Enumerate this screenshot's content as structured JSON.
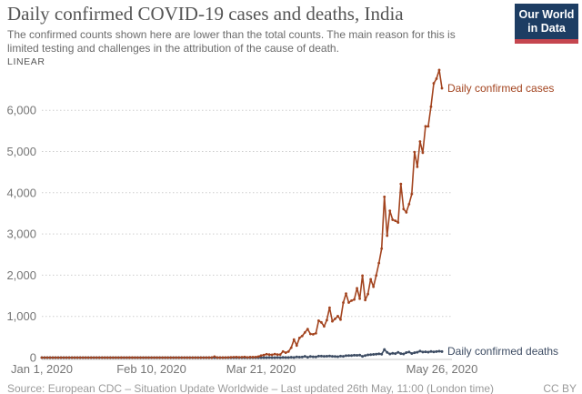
{
  "header": {
    "title": "Daily confirmed COVID-19 cases and deaths, India",
    "subtitle": "The confirmed counts shown here are lower than the total counts. The main reason for this is limited testing and challenges in the attribution of the cause of death.",
    "logo": {
      "line1": "Our World",
      "line2": "in Data"
    }
  },
  "toolbar": {
    "scale_label": "LINEAR"
  },
  "footer": {
    "source": "Source: European CDC – Situation Update Worldwide – Last updated 26th May, 11:00 (London time)",
    "license": "CC BY"
  },
  "colors": {
    "cases": "#a3441f",
    "deaths": "#3d4c63",
    "gridline": "#cdcdcd",
    "axis_line": "#c8c8c8",
    "tick_text": "#757575",
    "logo_bg": "#1d3d63",
    "logo_stripe": "#c5464f",
    "title_text": "#555555"
  },
  "chart_data": {
    "type": "line",
    "title": "Daily confirmed COVID-19 cases and deaths, India",
    "xlabel": "",
    "ylabel": "",
    "grid": "horizontal-dashed",
    "legend_position": "end-of-line-labels",
    "start_date": "Jan 1, 2020",
    "end_date": "May 26, 2020",
    "y_axis": {
      "min": 0,
      "max": 7000,
      "tick_interval": 1000,
      "tick_labels": [
        "0",
        "1,000",
        "2,000",
        "3,000",
        "4,000",
        "5,000",
        "6,000"
      ]
    },
    "x_axis": {
      "ticks": [
        {
          "day": 0,
          "label": "Jan 1, 2020"
        },
        {
          "day": 40,
          "label": "Feb 10, 2020"
        },
        {
          "day": 80,
          "label": "Mar 21, 2020"
        },
        {
          "day": 146,
          "label": "May 26, 2020"
        }
      ]
    },
    "series": [
      {
        "name": "Daily confirmed cases",
        "color": "#a3441f",
        "values": [
          0,
          0,
          0,
          0,
          0,
          0,
          0,
          0,
          0,
          0,
          0,
          0,
          0,
          0,
          0,
          0,
          0,
          0,
          0,
          0,
          0,
          0,
          0,
          0,
          0,
          0,
          0,
          0,
          0,
          1,
          0,
          0,
          1,
          1,
          0,
          0,
          0,
          0,
          0,
          0,
          0,
          0,
          0,
          0,
          0,
          0,
          0,
          0,
          0,
          0,
          0,
          0,
          0,
          0,
          0,
          0,
          0,
          0,
          0,
          0,
          0,
          2,
          1,
          23,
          1,
          1,
          1,
          3,
          5,
          8,
          10,
          13,
          8,
          10,
          16,
          6,
          12,
          12,
          14,
          24,
          50,
          63,
          82,
          73,
          68,
          86,
          73,
          75,
          149,
          120,
          146,
          240,
          437,
          293,
          478,
          525,
          609,
          693,
          573,
          565,
          591,
          896,
          854,
          758,
          909,
          1211,
          881,
          941,
          1007,
          922,
          1334,
          1553,
          1336,
          1383,
          1409,
          1684,
          1429,
          1990,
          1396,
          1543,
          1902,
          1718,
          1993,
          2293,
          2644,
          3900,
          2958,
          3561,
          3344,
          3320,
          3277,
          4213,
          3604,
          3525,
          3722,
          3967,
          4987,
          4628,
          5242,
          4970,
          5611,
          5609,
          6088,
          6654,
          6767,
          6977,
          6535
        ]
      },
      {
        "name": "Daily confirmed deaths",
        "color": "#3d4c63",
        "values": [
          0,
          0,
          0,
          0,
          0,
          0,
          0,
          0,
          0,
          0,
          0,
          0,
          0,
          0,
          0,
          0,
          0,
          0,
          0,
          0,
          0,
          0,
          0,
          0,
          0,
          0,
          0,
          0,
          0,
          0,
          0,
          0,
          0,
          0,
          0,
          0,
          0,
          0,
          0,
          0,
          0,
          0,
          0,
          0,
          0,
          0,
          0,
          0,
          0,
          0,
          0,
          0,
          0,
          0,
          0,
          0,
          0,
          0,
          0,
          0,
          0,
          0,
          0,
          0,
          0,
          0,
          0,
          0,
          0,
          0,
          0,
          0,
          1,
          1,
          0,
          0,
          1,
          0,
          0,
          1,
          1,
          0,
          1,
          2,
          1,
          1,
          4,
          1,
          5,
          3,
          3,
          9,
          4,
          16,
          12,
          13,
          30,
          8,
          27,
          20,
          17,
          37,
          35,
          29,
          34,
          38,
          29,
          28,
          23,
          36,
          31,
          47,
          50,
          49,
          57,
          56,
          60,
          31,
          51,
          67,
          73,
          77,
          83,
          92,
          83,
          195,
          126,
          89,
          104,
          97,
          128,
          97,
          87,
          122,
          134,
          100,
          120,
          131,
          157,
          134,
          140,
          132,
          148,
          137,
          147,
          154,
          146
        ]
      }
    ]
  }
}
